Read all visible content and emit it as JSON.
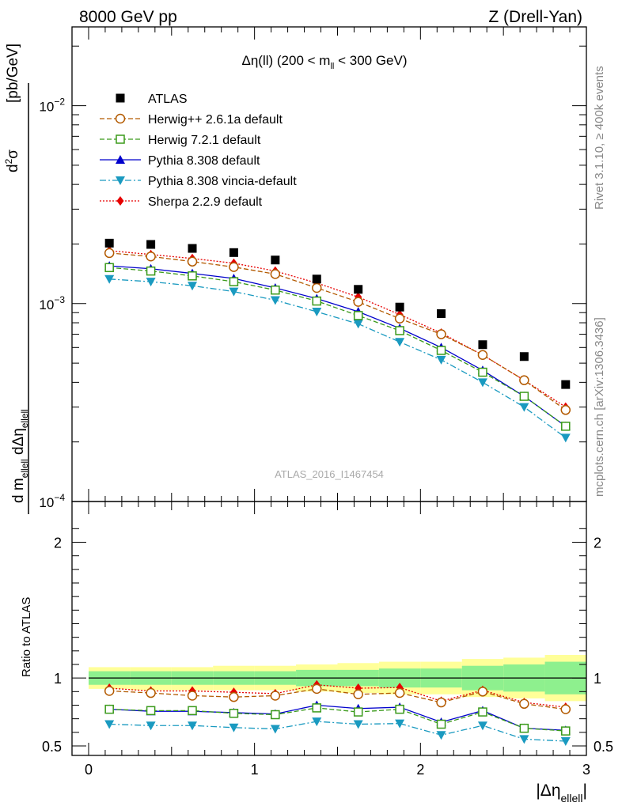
{
  "header": {
    "left": "8000 GeV pp",
    "right": "Z (Drell-Yan)"
  },
  "side": {
    "rivet": "Rivet 3.1.10, ≥ 400k events",
    "site": "mcplots.cern.ch [arXiv:1306.3436]"
  },
  "plot": {
    "title": "Δη(ll) (200 < m_ll < 300 GeV)",
    "watermark": "ATLAS_2016_I1467454",
    "ylabel_main": "d²σ / d m_ellell dΔη_ellell [pb/GeV]",
    "ylabel_ratio": "Ratio to ATLAS",
    "xlabel": "|Δη_ellell|"
  },
  "colors": {
    "atlas": "#000000",
    "herwigpp": "#b35a00",
    "herwig7": "#3a9a1a",
    "pythia": "#0000cc",
    "vincia": "#1a9ac0",
    "sherpa": "#e60000",
    "band_inner": "#8ef08e",
    "band_outer": "#ffff99"
  },
  "chart_data": [
    {
      "type": "scatter",
      "panel": "main",
      "yscale": "log",
      "xlim": [
        -0.1,
        3.0
      ],
      "ylim": [
        0.0001,
        0.025
      ],
      "x_ticks": [
        0,
        1,
        2,
        3
      ],
      "y_ticks": [
        {
          "value": 0.0001,
          "base": "10",
          "exp": "−4"
        },
        {
          "value": 0.001,
          "base": "10",
          "exp": "−3"
        },
        {
          "value": 0.01,
          "base": "10",
          "exp": "−2"
        }
      ],
      "x": [
        0.125,
        0.375,
        0.625,
        0.875,
        1.125,
        1.375,
        1.625,
        1.875,
        2.125,
        2.375,
        2.625,
        2.875
      ],
      "series": [
        {
          "name": "ATLAS",
          "key": "atlas",
          "marker": "square-filled",
          "line": "none",
          "values": [
            0.00202,
            0.00199,
            0.0019,
            0.00181,
            0.00166,
            0.00133,
            0.00118,
            0.00096,
            0.00089,
            0.00062,
            0.00054,
            0.00039
          ]
        },
        {
          "name": "Herwig++ 2.6.1a default",
          "key": "herwigpp",
          "marker": "circle-open",
          "line": "dashed",
          "values": [
            0.0018,
            0.00173,
            0.00163,
            0.00153,
            0.00141,
            0.0012,
            0.00102,
            0.00084,
            0.0007,
            0.00055,
            0.00041,
            0.00029
          ]
        },
        {
          "name": "Herwig 7.2.1 default",
          "key": "herwig7",
          "marker": "square-open",
          "line": "dashed",
          "values": [
            0.00152,
            0.00146,
            0.00138,
            0.00129,
            0.00117,
            0.00103,
            0.00087,
            0.00073,
            0.00058,
            0.00045,
            0.00034,
            0.00024
          ]
        },
        {
          "name": "Pythia 8.308 default",
          "key": "pythia",
          "marker": "triangle-up",
          "line": "solid",
          "values": [
            0.00155,
            0.0015,
            0.00142,
            0.00134,
            0.0012,
            0.00106,
            0.00091,
            0.00075,
            0.0006,
            0.00046,
            0.00034,
            0.00024
          ]
        },
        {
          "name": "Pythia 8.308 vincia-default",
          "key": "vincia",
          "marker": "triangle-down",
          "line": "dashdot",
          "values": [
            0.00133,
            0.00129,
            0.00123,
            0.00115,
            0.00104,
            0.00091,
            0.00079,
            0.00064,
            0.00052,
            0.0004,
            0.0003,
            0.00021
          ]
        },
        {
          "name": "Sherpa 2.2.9 default",
          "key": "sherpa",
          "marker": "diamond-filled",
          "line": "dotted",
          "values": [
            0.00185,
            0.00177,
            0.00169,
            0.0016,
            0.00146,
            0.00127,
            0.00108,
            0.00088,
            0.00071,
            0.00055,
            0.00041,
            0.0003
          ]
        }
      ]
    },
    {
      "type": "line",
      "panel": "ratio",
      "xlim": [
        -0.1,
        3.0
      ],
      "ylim": [
        0.43,
        2.3
      ],
      "x_ticks": [
        0,
        1,
        2,
        3
      ],
      "y_ticks": [
        0.5,
        1,
        2
      ],
      "reference_line": 1,
      "band_edges": [
        0,
        0.25,
        0.5,
        0.75,
        1.0,
        1.25,
        1.5,
        1.75,
        2.0,
        2.25,
        2.5,
        2.75,
        3.0
      ],
      "band_inner": [
        [
          0.95,
          1.05
        ],
        [
          0.95,
          1.05
        ],
        [
          0.95,
          1.05
        ],
        [
          0.95,
          1.05
        ],
        [
          0.95,
          1.05
        ],
        [
          0.94,
          1.06
        ],
        [
          0.94,
          1.06
        ],
        [
          0.93,
          1.07
        ],
        [
          0.93,
          1.07
        ],
        [
          0.91,
          1.09
        ],
        [
          0.9,
          1.1
        ],
        [
          0.88,
          1.12
        ]
      ],
      "band_outer": [
        [
          0.92,
          1.08
        ],
        [
          0.91,
          1.08
        ],
        [
          0.91,
          1.08
        ],
        [
          0.91,
          1.09
        ],
        [
          0.91,
          1.09
        ],
        [
          0.9,
          1.1
        ],
        [
          0.89,
          1.11
        ],
        [
          0.88,
          1.12
        ],
        [
          0.88,
          1.12
        ],
        [
          0.86,
          1.14
        ],
        [
          0.85,
          1.15
        ],
        [
          0.83,
          1.17
        ]
      ],
      "x": [
        0.125,
        0.375,
        0.625,
        0.875,
        1.125,
        1.375,
        1.625,
        1.875,
        2.125,
        2.375,
        2.625,
        2.875
      ],
      "series": [
        {
          "name": "Herwig++ 2.6.1a default",
          "key": "herwigpp",
          "marker": "circle-open",
          "line": "dashed",
          "values": [
            0.905,
            0.89,
            0.87,
            0.86,
            0.87,
            0.92,
            0.88,
            0.89,
            0.82,
            0.9,
            0.81,
            0.77
          ]
        },
        {
          "name": "Herwig 7.2.1 default",
          "key": "herwig7",
          "marker": "square-open",
          "line": "dashed",
          "values": [
            0.77,
            0.76,
            0.76,
            0.74,
            0.73,
            0.78,
            0.75,
            0.77,
            0.66,
            0.75,
            0.63,
            0.61
          ]
        },
        {
          "name": "Pythia 8.308 default",
          "key": "pythia",
          "marker": "triangle-up",
          "line": "solid",
          "values": [
            0.77,
            0.755,
            0.755,
            0.745,
            0.735,
            0.8,
            0.775,
            0.785,
            0.675,
            0.76,
            0.63,
            0.615
          ]
        },
        {
          "name": "Pythia 8.308 vincia-default",
          "key": "vincia",
          "marker": "triangle-down",
          "line": "dashdot",
          "values": [
            0.66,
            0.65,
            0.65,
            0.635,
            0.625,
            0.68,
            0.66,
            0.665,
            0.58,
            0.65,
            0.55,
            0.535
          ]
        },
        {
          "name": "Sherpa 2.2.9 default",
          "key": "sherpa",
          "marker": "diamond-filled",
          "line": "dotted",
          "values": [
            0.925,
            0.905,
            0.905,
            0.895,
            0.885,
            0.95,
            0.925,
            0.93,
            0.83,
            0.91,
            0.82,
            0.785
          ]
        }
      ]
    }
  ]
}
